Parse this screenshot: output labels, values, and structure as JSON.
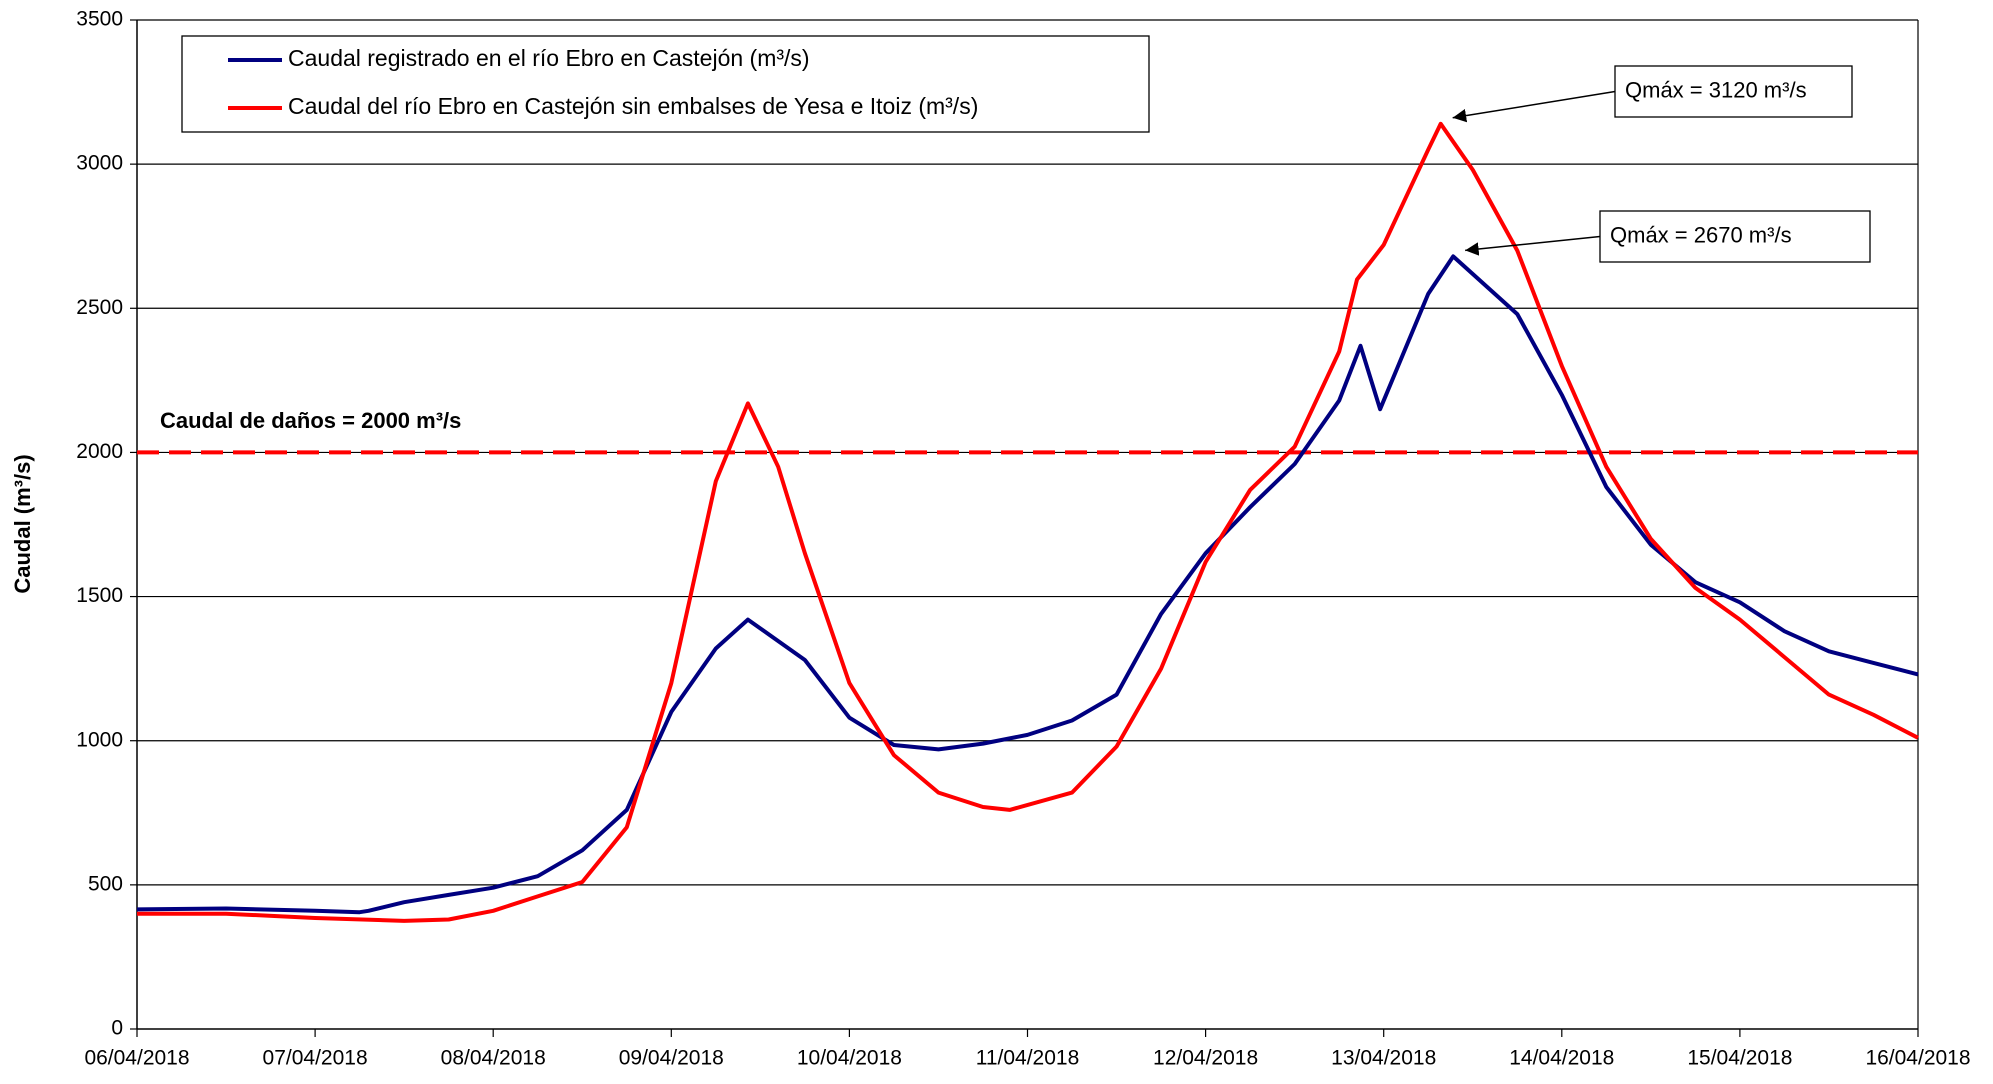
{
  "chart_data": {
    "type": "line",
    "ylabel": "Caudal (m³/s)",
    "xlim": [
      0,
      10
    ],
    "xticks": [
      {
        "value": 0,
        "label": "06/04/2018"
      },
      {
        "value": 1,
        "label": "07/04/2018"
      },
      {
        "value": 2,
        "label": "08/04/2018"
      },
      {
        "value": 3,
        "label": "09/04/2018"
      },
      {
        "value": 4,
        "label": "10/04/2018"
      },
      {
        "value": 5,
        "label": "11/04/2018"
      },
      {
        "value": 6,
        "label": "12/04/2018"
      },
      {
        "value": 7,
        "label": "13/04/2018"
      },
      {
        "value": 8,
        "label": "14/04/2018"
      },
      {
        "value": 9,
        "label": "15/04/2018"
      },
      {
        "value": 10,
        "label": "16/04/2018"
      }
    ],
    "ylim": [
      0,
      3500
    ],
    "yticks": [
      0,
      500,
      1000,
      1500,
      2000,
      2500,
      3000,
      3500
    ],
    "grid": true,
    "legend": "top-left",
    "threshold": {
      "value": 2000,
      "label": "Caudal de daños = 2000 m³/s",
      "color": "#ff0000"
    },
    "series": [
      {
        "name": "Caudal registrado en el río Ebro en Castejón (m³/s)",
        "color": "#000080",
        "x": [
          0,
          0.5,
          1,
          1.25,
          1.3,
          1.5,
          1.75,
          2,
          2.25,
          2.5,
          2.75,
          3,
          3.25,
          3.43,
          3.75,
          4,
          4.25,
          4.5,
          4.75,
          5,
          5.25,
          5.5,
          5.75,
          6,
          6.25,
          6.5,
          6.75,
          6.87,
          6.98,
          7.25,
          7.39,
          7.75,
          8,
          8.25,
          8.5,
          8.75,
          9,
          9.25,
          9.5,
          9.75,
          10
        ],
        "values": [
          415,
          418,
          410,
          405,
          410,
          440,
          465,
          490,
          530,
          620,
          760,
          1100,
          1320,
          1420,
          1280,
          1080,
          985,
          970,
          990,
          1020,
          1070,
          1160,
          1440,
          1650,
          1810,
          1960,
          2180,
          2370,
          2150,
          2550,
          2680,
          2480,
          2200,
          1880,
          1680,
          1550,
          1480,
          1380,
          1310,
          1270,
          1230
        ],
        "annotation": "Qmáx = 2670 m³/s"
      },
      {
        "name": "Caudal del río Ebro en Castejón sin embalses de Yesa e Itoiz (m³/s)",
        "color": "#ff0000",
        "x": [
          0,
          0.5,
          1,
          1.5,
          1.75,
          2,
          2.25,
          2.5,
          2.75,
          3,
          3.25,
          3.43,
          3.6,
          3.75,
          4,
          4.25,
          4.5,
          4.75,
          4.9,
          5.25,
          5.5,
          5.75,
          6,
          6.25,
          6.5,
          6.75,
          6.85,
          7,
          7.25,
          7.32,
          7.5,
          7.75,
          8,
          8.25,
          8.5,
          8.75,
          9,
          9.25,
          9.5,
          9.75,
          10
        ],
        "values": [
          400,
          400,
          385,
          375,
          380,
          410,
          460,
          510,
          700,
          1200,
          1900,
          2170,
          1950,
          1650,
          1200,
          950,
          820,
          770,
          760,
          820,
          980,
          1250,
          1620,
          1870,
          2020,
          2350,
          2600,
          2720,
          3050,
          3140,
          2980,
          2700,
          2300,
          1950,
          1700,
          1530,
          1420,
          1290,
          1160,
          1090,
          1010
        ],
        "annotation": "Qmáx = 3120 m³/s"
      }
    ]
  }
}
